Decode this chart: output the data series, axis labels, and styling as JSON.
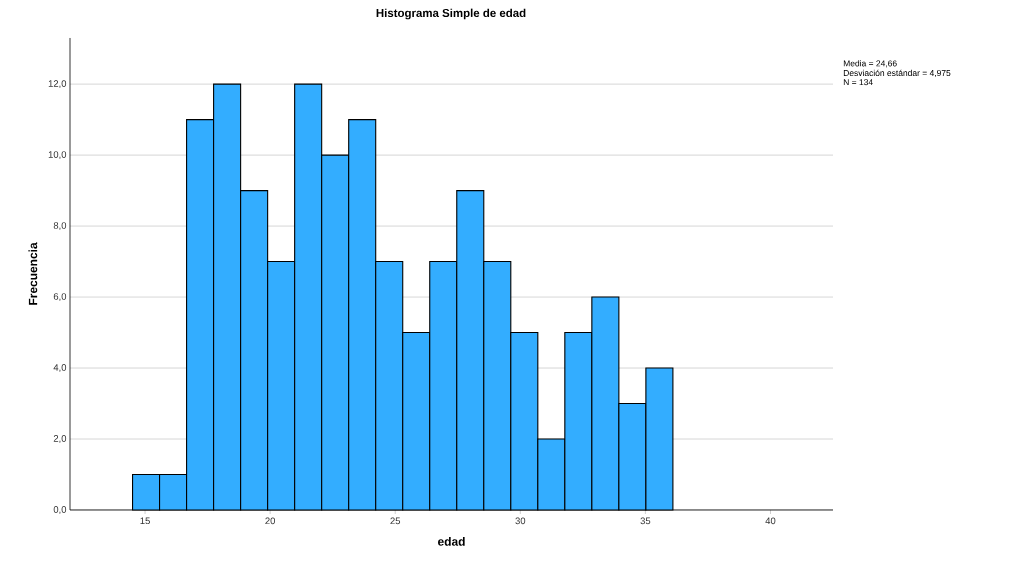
{
  "chart_data": {
    "type": "histogram",
    "title": "Histograma Simple de edad",
    "xlabel": "edad",
    "ylabel": "Frecuencia",
    "bins": [
      14.5,
      15.58,
      16.66,
      17.74,
      18.82,
      19.9,
      20.98,
      22.06,
      23.14,
      24.22,
      25.3,
      26.38,
      27.46,
      28.54,
      29.62,
      30.7,
      31.78,
      32.86,
      33.94,
      35.02,
      36.1
    ],
    "values": [
      1,
      1,
      11,
      12,
      9,
      7,
      12,
      10,
      11,
      7,
      5,
      7,
      9,
      7,
      5,
      2,
      5,
      6,
      3,
      4
    ],
    "color": "#33adff",
    "xlim": [
      12,
      42.5
    ],
    "xticks": [
      15,
      20,
      25,
      30,
      35,
      40
    ],
    "ylim": [
      0,
      13.3
    ],
    "yticks": [
      {
        "value": 0,
        "label": "0,0"
      },
      {
        "value": 2,
        "label": "2,0"
      },
      {
        "value": 4,
        "label": "4,0"
      },
      {
        "value": 6,
        "label": "6,0"
      },
      {
        "value": 8,
        "label": "8,0"
      },
      {
        "value": 10,
        "label": "10,0"
      },
      {
        "value": 12,
        "label": "12,0"
      }
    ],
    "grid": "y",
    "annotations": [
      "Media = 24,66",
      "Desviación estándar = 4,975",
      "N = 134"
    ]
  }
}
